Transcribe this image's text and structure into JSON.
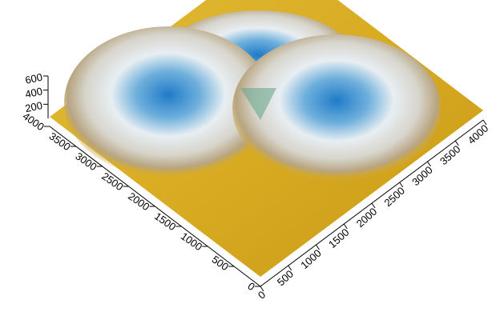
{
  "chart_data": {
    "type": "surface",
    "xlim": [
      0,
      4000
    ],
    "xticks": [
      0,
      500,
      1000,
      1500,
      2000,
      2500,
      3000,
      3500,
      4000
    ],
    "ylim": [
      0,
      4000
    ],
    "yticks": [
      0,
      500,
      1000,
      1500,
      2000,
      2500,
      3000,
      3500,
      4000
    ],
    "zlim": [
      0,
      600
    ],
    "zticks": [
      200,
      400,
      600
    ]
  }
}
